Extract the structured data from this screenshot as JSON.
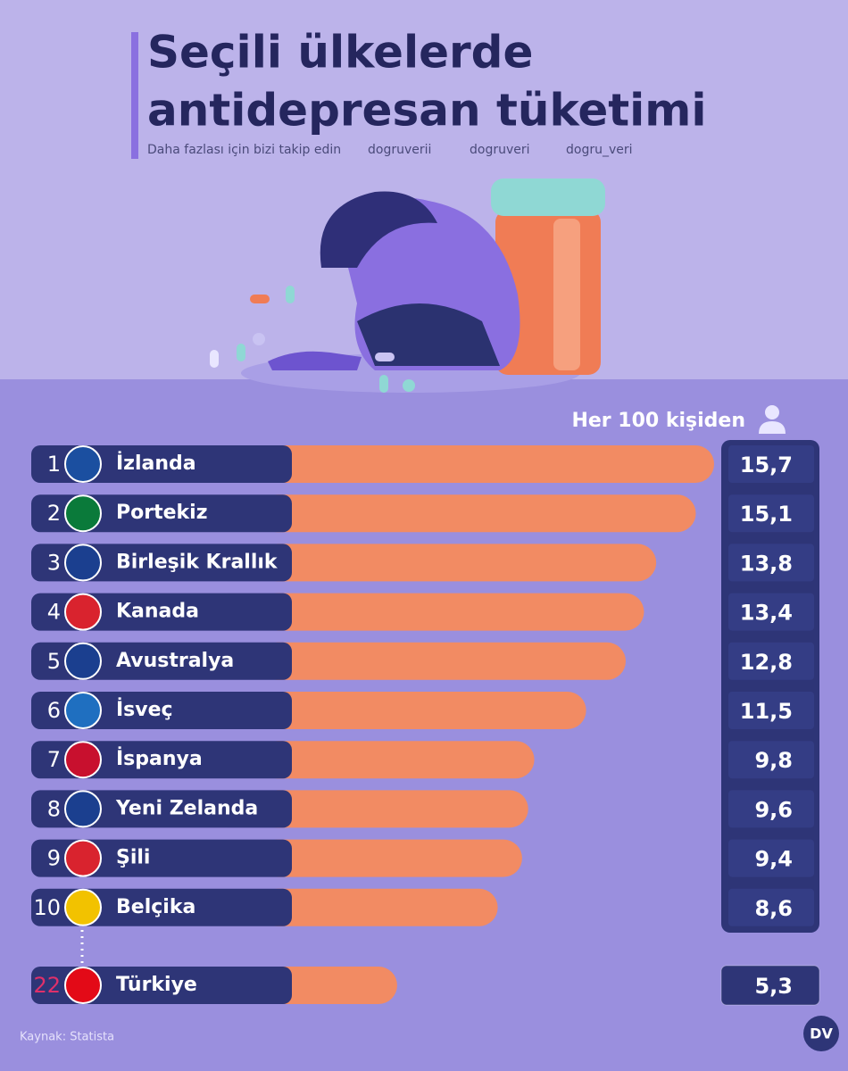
{
  "chart_data": {
    "type": "bar",
    "orientation": "horizontal",
    "title": "Seçili ülkelerde antidepresan tüketimi",
    "subtitle": "Daha fazlası için bizi takip edin",
    "social": [
      "dogruverii",
      "dogruveri",
      "dogru_veri"
    ],
    "unit_label": "Her 100 kişiden",
    "ranks": [
      1,
      2,
      3,
      4,
      5,
      6,
      7,
      8,
      9,
      10,
      22
    ],
    "categories": [
      "İzlanda",
      "Portekiz",
      "Birleşik Krallık",
      "Kanada",
      "Avustralya",
      "İsveç",
      "İspanya",
      "Yeni Zelanda",
      "Şili",
      "Belçika",
      "Türkiye"
    ],
    "values": [
      15.7,
      15.1,
      13.8,
      13.4,
      12.8,
      11.5,
      9.8,
      9.6,
      9.4,
      8.6,
      5.3
    ],
    "value_labels": [
      "15,7",
      "15,1",
      "13,8",
      "13,4",
      "12,8",
      "11,5",
      "9,8",
      "9,6",
      "9,4",
      "8,6",
      "5,3"
    ],
    "color": "#f28b63",
    "source": "Kaynak: Statista",
    "logo": "DV"
  }
}
